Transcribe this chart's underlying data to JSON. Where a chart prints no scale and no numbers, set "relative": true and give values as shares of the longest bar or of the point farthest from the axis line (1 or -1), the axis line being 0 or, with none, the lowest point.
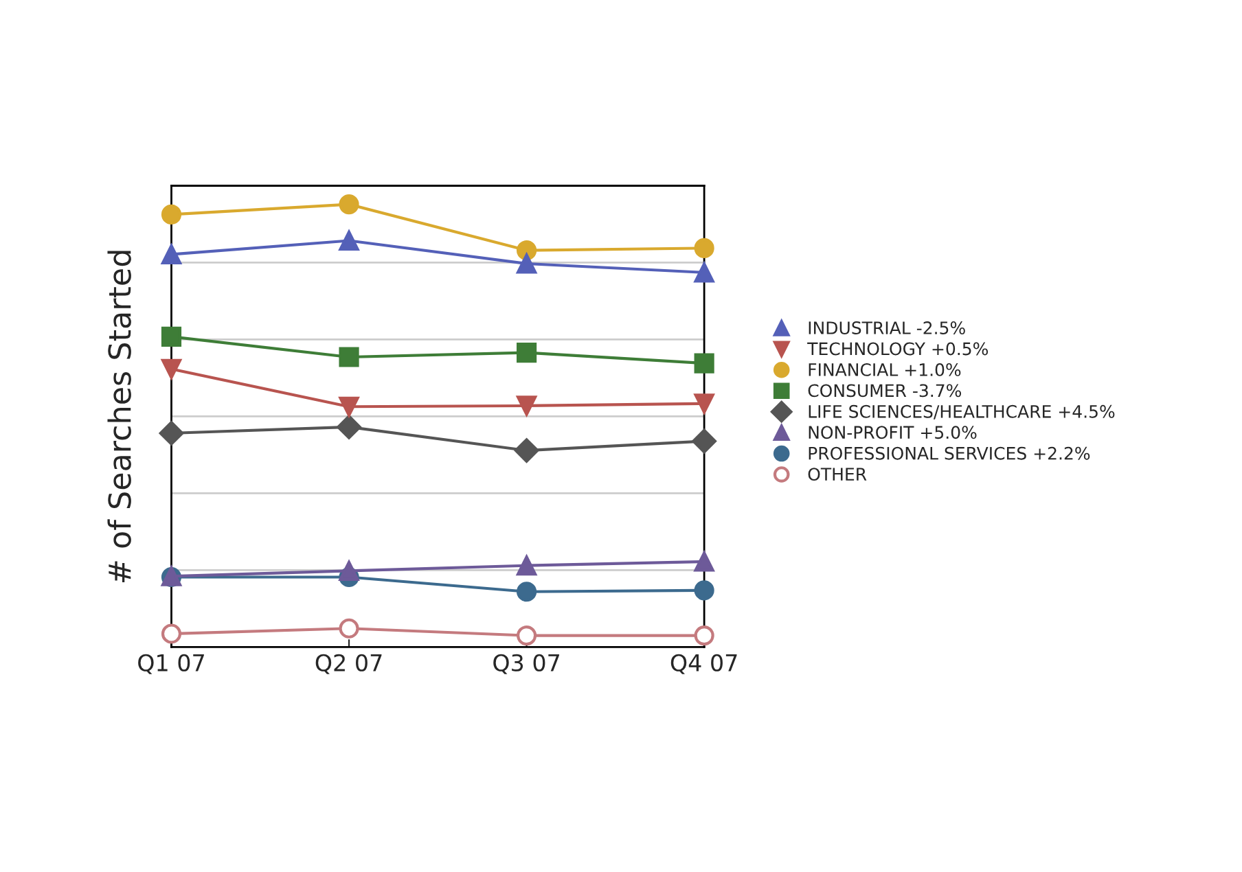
{
  "chart_data": {
    "type": "line",
    "relative": true,
    "ylabel": "# of Searches Started",
    "categories": [
      "Q1 07",
      "Q2 07",
      "Q3 07",
      "Q4 07"
    ],
    "grid": "y",
    "legend": "right",
    "series": [
      {
        "name": "INDUSTRIAL -2.5%",
        "color": "#5460b8",
        "marker": "triangle",
        "values": [
          0.887,
          0.918,
          0.866,
          0.846
        ]
      },
      {
        "name": "TECHNOLOGY +0.5%",
        "color": "#b8544f",
        "marker": "triangle-down",
        "values": [
          0.628,
          0.543,
          0.545,
          0.55
        ]
      },
      {
        "name": "FINANCIAL +1.0%",
        "color": "#d9a92e",
        "marker": "circle",
        "values": [
          0.977,
          1,
          0.896,
          0.901
        ]
      },
      {
        "name": "CONSUMER -3.7%",
        "color": "#3e7d37",
        "marker": "square",
        "values": [
          0.701,
          0.655,
          0.665,
          0.641
        ]
      },
      {
        "name": "LIFE SCIENCES/HEALTHCARE +4.5%",
        "color": "#555555",
        "marker": "diamond",
        "values": [
          0.483,
          0.497,
          0.444,
          0.465
        ]
      },
      {
        "name": "NON-PROFIT +5.0%",
        "color": "#6d5a99",
        "marker": "triangle",
        "values": [
          0.16,
          0.172,
          0.184,
          0.193
        ]
      },
      {
        "name": "PROFESSIONAL SERVICES +2.2%",
        "color": "#3c6a8e",
        "marker": "circle",
        "values": [
          0.158,
          0.158,
          0.125,
          0.128
        ]
      },
      {
        "name": "OTHER",
        "color": "#c47a7e",
        "marker": "circle-open",
        "values": [
          0.03,
          0.042,
          0.026,
          0.026
        ]
      }
    ]
  }
}
